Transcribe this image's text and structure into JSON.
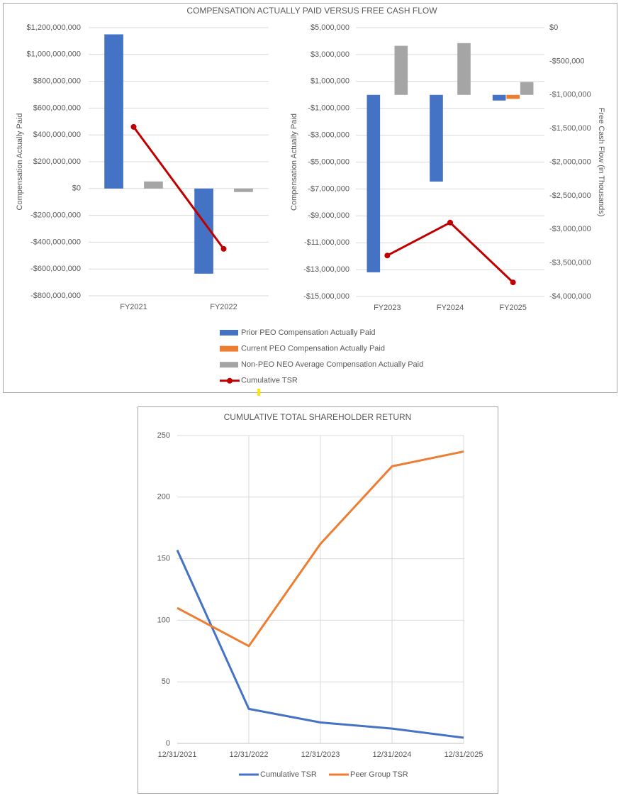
{
  "chart_data": [
    {
      "type": "bar",
      "title": "COMPENSATION ACTUALLY PAID VERSUS FREE CASH FLOW",
      "categories": [
        "FY2021",
        "FY2022"
      ],
      "y_label": "Compensation Actually Paid",
      "ylim": [
        -800000000,
        1200000000
      ],
      "yticks": [
        {
          "value": 1200000000,
          "label": "$1,200,000,000"
        },
        {
          "value": 1000000000,
          "label": "$1,000,000,000"
        },
        {
          "value": 800000000,
          "label": "$800,000,000"
        },
        {
          "value": 600000000,
          "label": "$600,000,000"
        },
        {
          "value": 400000000,
          "label": "$400,000,000"
        },
        {
          "value": 200000000,
          "label": "$200,000,000"
        },
        {
          "value": 0,
          "label": "$0"
        },
        {
          "value": -200000000,
          "label": "-$200,000,000"
        },
        {
          "value": -400000000,
          "label": "-$400,000,000"
        },
        {
          "value": -600000000,
          "label": "-$600,000,000"
        },
        {
          "value": -800000000,
          "label": "-$800,000,000"
        }
      ],
      "grid": true,
      "series": [
        {
          "name": "Prior PEO Compensation Actually Paid",
          "color": "#4472c4",
          "values": [
            1150000000,
            -635000000
          ]
        },
        {
          "name": "Current PEO Compensation Actually Paid",
          "color": "#ed7d31",
          "values": [
            null,
            null
          ]
        },
        {
          "name": "Non-PEO NEO Average Compensation Actually Paid",
          "color": "#a5a5a5",
          "values": [
            53000000,
            -26000000
          ]
        },
        {
          "name": "Cumulative TSR",
          "color": "#c00000",
          "type": "line",
          "marker": true,
          "values": [
            460000000,
            -450000000
          ]
        }
      ]
    },
    {
      "type": "bar",
      "categories": [
        "FY2023",
        "FY2024",
        "FY2025"
      ],
      "y_label": "Compensation Actually Paid",
      "y2_label": "Free Cash Flow  (in Thousands)",
      "ylim": [
        -15000000,
        5000000
      ],
      "yticks": [
        {
          "value": 5000000,
          "label": "$5,000,000"
        },
        {
          "value": 3000000,
          "label": "$3,000,000"
        },
        {
          "value": 1000000,
          "label": "$1,000,000"
        },
        {
          "value": -1000000,
          "label": "-$1,000,000"
        },
        {
          "value": -3000000,
          "label": "-$3,000,000"
        },
        {
          "value": -5000000,
          "label": "-$5,000,000"
        },
        {
          "value": -7000000,
          "label": "-$7,000,000"
        },
        {
          "value": -9000000,
          "label": "-$9,000,000"
        },
        {
          "value": -11000000,
          "label": "-$11,000,000"
        },
        {
          "value": -13000000,
          "label": "-$13,000,000"
        },
        {
          "value": -15000000,
          "label": "-$15,000,000"
        }
      ],
      "y2lim": [
        -4000000,
        0
      ],
      "y2ticks": [
        {
          "value": 0,
          "label": "$0"
        },
        {
          "value": -500000,
          "label": "-$500,000"
        },
        {
          "value": -1000000,
          "label": "-$1,000,000"
        },
        {
          "value": -1500000,
          "label": "-$1,500,000"
        },
        {
          "value": -2000000,
          "label": "-$2,000,000"
        },
        {
          "value": -2500000,
          "label": "-$2,500,000"
        },
        {
          "value": -3000000,
          "label": "-$3,000,000"
        },
        {
          "value": -3500000,
          "label": "-$3,500,000"
        },
        {
          "value": -4000000,
          "label": "-$4,000,000"
        }
      ],
      "grid": true,
      "series": [
        {
          "color": "#4472c4",
          "values": [
            -13200000,
            -6450000,
            -420000
          ]
        },
        {
          "color": "#ed7d31",
          "values": [
            null,
            null,
            -300000
          ]
        },
        {
          "color": "#a5a5a5",
          "values": [
            3650000,
            3850000,
            950000
          ]
        },
        {
          "color": "#c00000",
          "type": "line",
          "marker": true,
          "axis": "y2",
          "values": [
            -3390000,
            -2900000,
            -3790000
          ]
        }
      ]
    },
    {
      "type": "line",
      "title": "CUMULATIVE TOTAL SHAREHOLDER RETURN",
      "categories": [
        "12/31/2021",
        "12/31/2022",
        "12/31/2023",
        "12/31/2024",
        "12/31/2025"
      ],
      "ylim": [
        0,
        250
      ],
      "yticks": [
        0,
        50,
        100,
        150,
        200,
        250
      ],
      "grid": true,
      "series": [
        {
          "name": "Cumulative TSR",
          "color": "#4472c4",
          "values": [
            157,
            28,
            17,
            12,
            4.6
          ]
        },
        {
          "name": "Peer Group TSR",
          "color": "#ed7d31",
          "values": [
            110,
            79,
            162,
            225,
            237
          ]
        }
      ]
    }
  ]
}
